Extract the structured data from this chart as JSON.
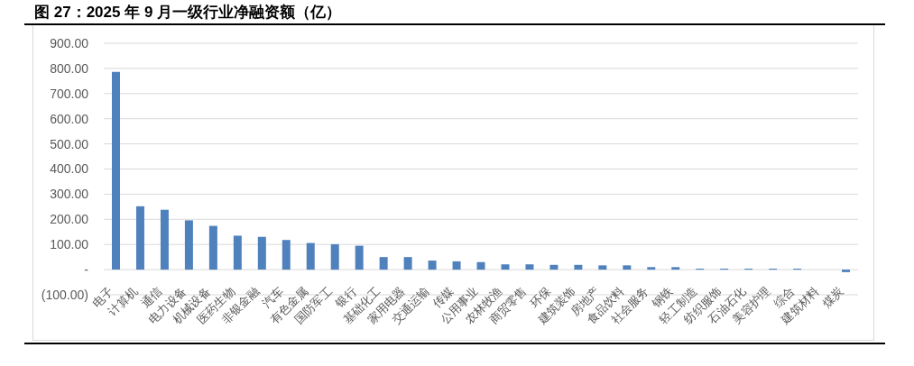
{
  "chart_data": {
    "type": "bar",
    "title": "图 27：2025 年 9 月一级行业净融资额（亿）",
    "categories": [
      "电子",
      "计算机",
      "通信",
      "电力设备",
      "机械设备",
      "医药生物",
      "非银金融",
      "汽车",
      "有色金属",
      "国防军工",
      "银行",
      "基础化工",
      "家用电器",
      "交通运输",
      "传媒",
      "公用事业",
      "农林牧渔",
      "商贸零售",
      "环保",
      "建筑装饰",
      "房地产",
      "食品饮料",
      "社会服务",
      "钢铁",
      "轻工制造",
      "纺织服饰",
      "石油石化",
      "美容护理",
      "综合",
      "建筑材料",
      "煤炭"
    ],
    "values": [
      786,
      252,
      238,
      196,
      174,
      135,
      130,
      118,
      106,
      101,
      95,
      50,
      50,
      36,
      33,
      30,
      21,
      21,
      19,
      19,
      17,
      17,
      10,
      10,
      4,
      4,
      4,
      4,
      4,
      0,
      -10
    ],
    "color": "#4f81bd",
    "ylim": [
      -100,
      900
    ],
    "yticks": [
      {
        "value": -100,
        "label": "(100.00)"
      },
      {
        "value": 0,
        "label": "-"
      },
      {
        "value": 100,
        "label": "100.00"
      },
      {
        "value": 200,
        "label": "200.00"
      },
      {
        "value": 300,
        "label": "300.00"
      },
      {
        "value": 400,
        "label": "400.00"
      },
      {
        "value": 500,
        "label": "500.00"
      },
      {
        "value": 600,
        "label": "600.00"
      },
      {
        "value": 700,
        "label": "700.00"
      },
      {
        "value": 800,
        "label": "800.00"
      },
      {
        "value": 900,
        "label": "900.00"
      }
    ],
    "grid": "y"
  }
}
